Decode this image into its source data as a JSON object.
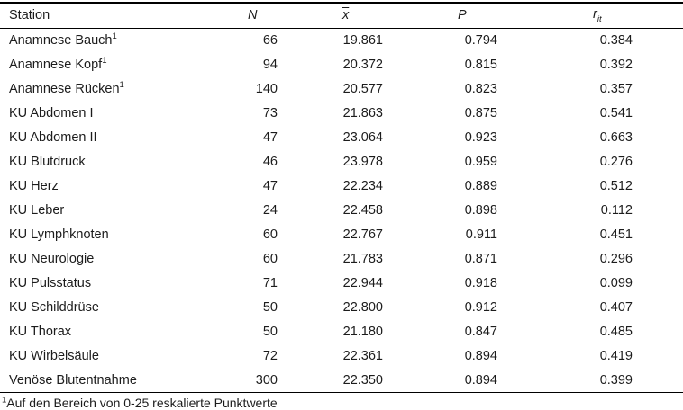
{
  "table": {
    "columns": [
      {
        "key": "station",
        "label": "Station"
      },
      {
        "key": "n",
        "label": "N"
      },
      {
        "key": "xbar",
        "label": "x"
      },
      {
        "key": "p",
        "label": "P"
      },
      {
        "key": "rit",
        "label": "r",
        "sublabel": "it"
      }
    ],
    "rows": [
      {
        "station": "Anamnese Bauch",
        "marker": "1",
        "n": "66",
        "xbar": "19.861",
        "p": "0.794",
        "rit": "0.384"
      },
      {
        "station": "Anamnese Kopf",
        "marker": "1",
        "n": "94",
        "xbar": "20.372",
        "p": "0.815",
        "rit": "0.392"
      },
      {
        "station": "Anamnese Rücken",
        "marker": "1",
        "n": "140",
        "xbar": "20.577",
        "p": "0.823",
        "rit": "0.357"
      },
      {
        "station": "KU Abdomen I",
        "n": "73",
        "xbar": "21.863",
        "p": "0.875",
        "rit": "0.541"
      },
      {
        "station": "KU Abdomen II",
        "n": "47",
        "xbar": "23.064",
        "p": "0.923",
        "rit": "0.663"
      },
      {
        "station": "KU Blutdruck",
        "n": "46",
        "xbar": "23.978",
        "p": "0.959",
        "rit": "0.276"
      },
      {
        "station": "KU Herz",
        "n": "47",
        "xbar": "22.234",
        "p": "0.889",
        "rit": "0.512"
      },
      {
        "station": "KU Leber",
        "n": "24",
        "xbar": "22.458",
        "p": "0.898",
        "rit": "0.112"
      },
      {
        "station": "KU Lymphknoten",
        "n": "60",
        "xbar": "22.767",
        "p": "0.911",
        "rit": "0.451"
      },
      {
        "station": "KU Neurologie",
        "n": "60",
        "xbar": "21.783",
        "p": "0.871",
        "rit": "0.296"
      },
      {
        "station": "KU Pulsstatus",
        "n": "71",
        "xbar": "22.944",
        "p": "0.918",
        "rit": "0.099"
      },
      {
        "station": "KU Schilddrüse",
        "n": "50",
        "xbar": "22.800",
        "p": "0.912",
        "rit": "0.407"
      },
      {
        "station": "KU Thorax",
        "n": "50",
        "xbar": "21.180",
        "p": "0.847",
        "rit": "0.485"
      },
      {
        "station": "KU Wirbelsäule",
        "n": "72",
        "xbar": "22.361",
        "p": "0.894",
        "rit": "0.419"
      },
      {
        "station": "Venöse Blutentnahme",
        "n": "300",
        "xbar": "22.350",
        "p": "0.894",
        "rit": "0.399"
      }
    ]
  },
  "footnote": {
    "marker": "1",
    "text": "Auf den Bereich von 0-25 reskalierte Punktwerte"
  },
  "colors": {
    "text": "#1c1c1c",
    "rule": "#000000",
    "background": "#ffffff"
  }
}
